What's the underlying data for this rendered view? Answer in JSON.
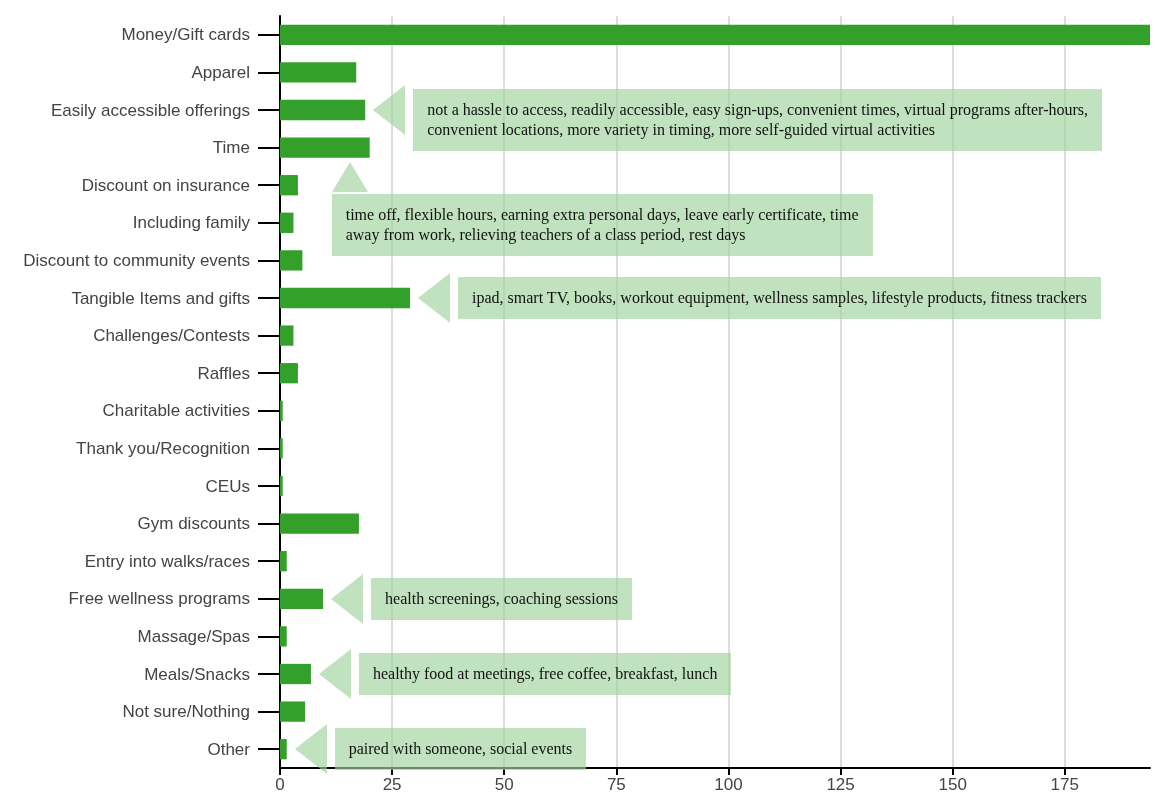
{
  "chart_data": {
    "type": "bar",
    "orientation": "horizontal",
    "categories": [
      "Money/Gift cards",
      "Apparel",
      "Easily accessible offerings",
      "Time",
      "Discount on insurance",
      "Including family",
      "Discount to community events",
      "Tangible Items and gifts",
      "Challenges/Contests",
      "Raffles",
      "Charitable activities",
      "Thank you/Recognition",
      "CEUs",
      "Gym discounts",
      "Entry into walks/races",
      "Free wellness programs",
      "Massage/Spas",
      "Meals/Snacks",
      "Not sure/Nothing",
      "Other"
    ],
    "values": [
      194,
      17,
      19,
      20,
      4,
      3,
      5,
      29,
      3,
      4,
      0.6,
      0.6,
      0.6,
      17.6,
      1.5,
      9.6,
      1.5,
      6.9,
      5.6,
      1.5
    ],
    "color": "#33a02c",
    "xlim": [
      0,
      194
    ],
    "xticks": [
      0,
      25,
      50,
      75,
      100,
      125,
      150,
      175
    ],
    "grid": "x",
    "annotations": [
      "not a hassle to access, readily accessible, easy sign-ups, convenient times, virtual programs after-hours, convenient locations, more variety in timing, more self-guided virtual activities",
      "time off, flexible hours, earning extra personal days, leave early certificate, time away from work, relieving teachers of a class period, rest days",
      "ipad, smart TV, books, workout equipment, wellness samples, lifestyle products, fitness trackers",
      "health screenings, coaching sessions",
      "healthy food at meetings, free coffee, breakfast, lunch",
      "paired with someone, social events"
    ]
  }
}
